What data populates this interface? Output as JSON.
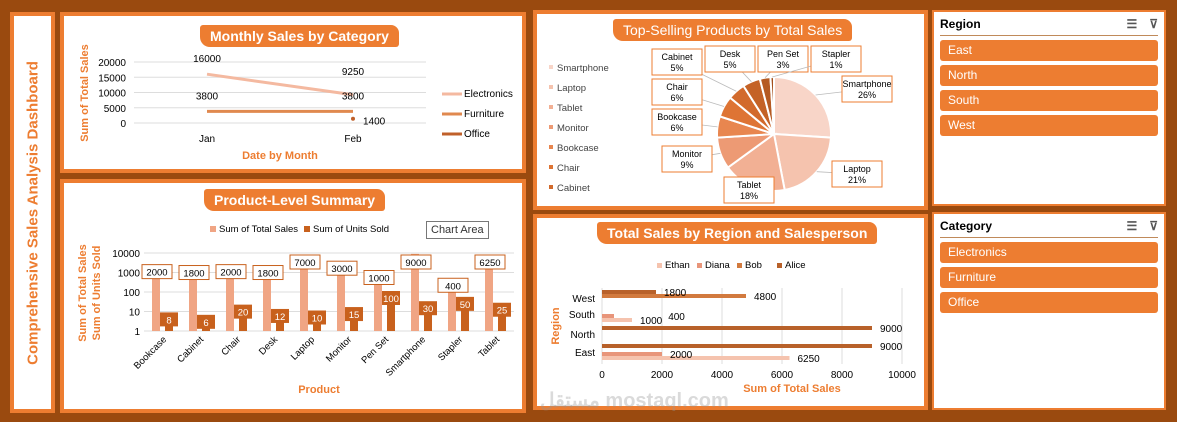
{
  "dashboard_title": "Comprehensive Sales Analysis Dashboard",
  "colors": {
    "accent": "#ed7d31",
    "background": "#9a4a0f"
  },
  "tooltip": "Chart Area",
  "watermark": "مستقل mostaql.com",
  "chart_data": [
    {
      "type": "line",
      "title": "Monthly Sales by Category",
      "xlabel": "Date by Month",
      "ylabel": "Sum of Total Sales",
      "categories": [
        "Jan",
        "Feb"
      ],
      "ylim": [
        0,
        20000
      ],
      "yticks": [
        0,
        5000,
        10000,
        15000,
        20000
      ],
      "grid": true,
      "legend": "right",
      "series": [
        {
          "name": "Electronics",
          "values": [
            16000,
            9250
          ],
          "color": "#f4b9a0"
        },
        {
          "name": "Furniture",
          "values": [
            3800,
            3800
          ],
          "color": "#e0894f"
        },
        {
          "name": "Office",
          "values": [
            null,
            1400
          ],
          "color": "#c0602a"
        }
      ]
    },
    {
      "type": "bar",
      "title": "Product-Level Summary",
      "xlabel": "Product",
      "ylabel": "Sum of Total Sales\nSum of Units Sold",
      "yscale": "log",
      "ylim": [
        1,
        10000
      ],
      "yticks": [
        1,
        10,
        100,
        1000,
        10000
      ],
      "grid": true,
      "legend": "top",
      "categories": [
        "Bookcase",
        "Cabinet",
        "Chair",
        "Desk",
        "Laptop",
        "Monitor",
        "Pen Set",
        "Smartphone",
        "Stapler",
        "Tablet"
      ],
      "series": [
        {
          "name": "Sum of Total Sales",
          "values": [
            2000,
            1800,
            2000,
            1800,
            7000,
            3000,
            1000,
            9000,
            400,
            6250
          ],
          "color": "#f0a584"
        },
        {
          "name": "Sum of Units Sold",
          "values": [
            8,
            6,
            20,
            12,
            10,
            15,
            100,
            30,
            50,
            25
          ],
          "color": "#c8611d"
        }
      ]
    },
    {
      "type": "pie",
      "title": "Top-Selling Products by Total Sales",
      "legend": "left",
      "slices": [
        {
          "label": "Smartphone",
          "value": 26,
          "color": "#f8d5c8"
        },
        {
          "label": "Laptop",
          "value": 21,
          "color": "#f5c3ae"
        },
        {
          "label": "Tablet",
          "value": 18,
          "color": "#f2b094"
        },
        {
          "label": "Monitor",
          "value": 9,
          "color": "#ed9a74"
        },
        {
          "label": "Bookcase",
          "value": 6,
          "color": "#e8864f"
        },
        {
          "label": "Chair",
          "value": 6,
          "color": "#de7434"
        },
        {
          "label": "Cabinet",
          "value": 5,
          "color": "#d26a2c"
        },
        {
          "label": "Desk",
          "value": 5,
          "color": "#c46226"
        },
        {
          "label": "Pen Set",
          "value": 3,
          "color": "#b55a22"
        },
        {
          "label": "Stapler",
          "value": 1,
          "color": "#a4501d"
        }
      ],
      "legend_entries": [
        "Smartphone",
        "Laptop",
        "Tablet",
        "Monitor",
        "Bookcase",
        "Chair",
        "Cabinet"
      ]
    },
    {
      "type": "bar",
      "orientation": "horizontal",
      "title": "Total Sales by Region and Salesperson",
      "xlabel": "Sum of Total Sales",
      "ylabel": "Region",
      "xlim": [
        0,
        10000
      ],
      "xticks": [
        0,
        2000,
        4000,
        6000,
        8000,
        10000
      ],
      "grid": true,
      "legend": "top",
      "categories": [
        "East",
        "North",
        "South",
        "West"
      ],
      "series": [
        {
          "name": "Ethan",
          "values": [
            6250,
            null,
            1000,
            null
          ],
          "color": "#f5c3ae"
        },
        {
          "name": "Diana",
          "values": [
            2000,
            null,
            400,
            null
          ],
          "color": "#e8957a"
        },
        {
          "name": "Bob",
          "values": [
            null,
            null,
            null,
            4800
          ],
          "color": "#d27a3e"
        },
        {
          "name": "Alice",
          "values": [
            9000,
            9000,
            null,
            1800
          ],
          "color": "#b8612a"
        }
      ]
    }
  ],
  "slicers": [
    {
      "title": "Region",
      "items": [
        "East",
        "North",
        "South",
        "West"
      ]
    },
    {
      "title": "Category",
      "items": [
        "Electronics",
        "Furniture",
        "Office"
      ]
    }
  ]
}
